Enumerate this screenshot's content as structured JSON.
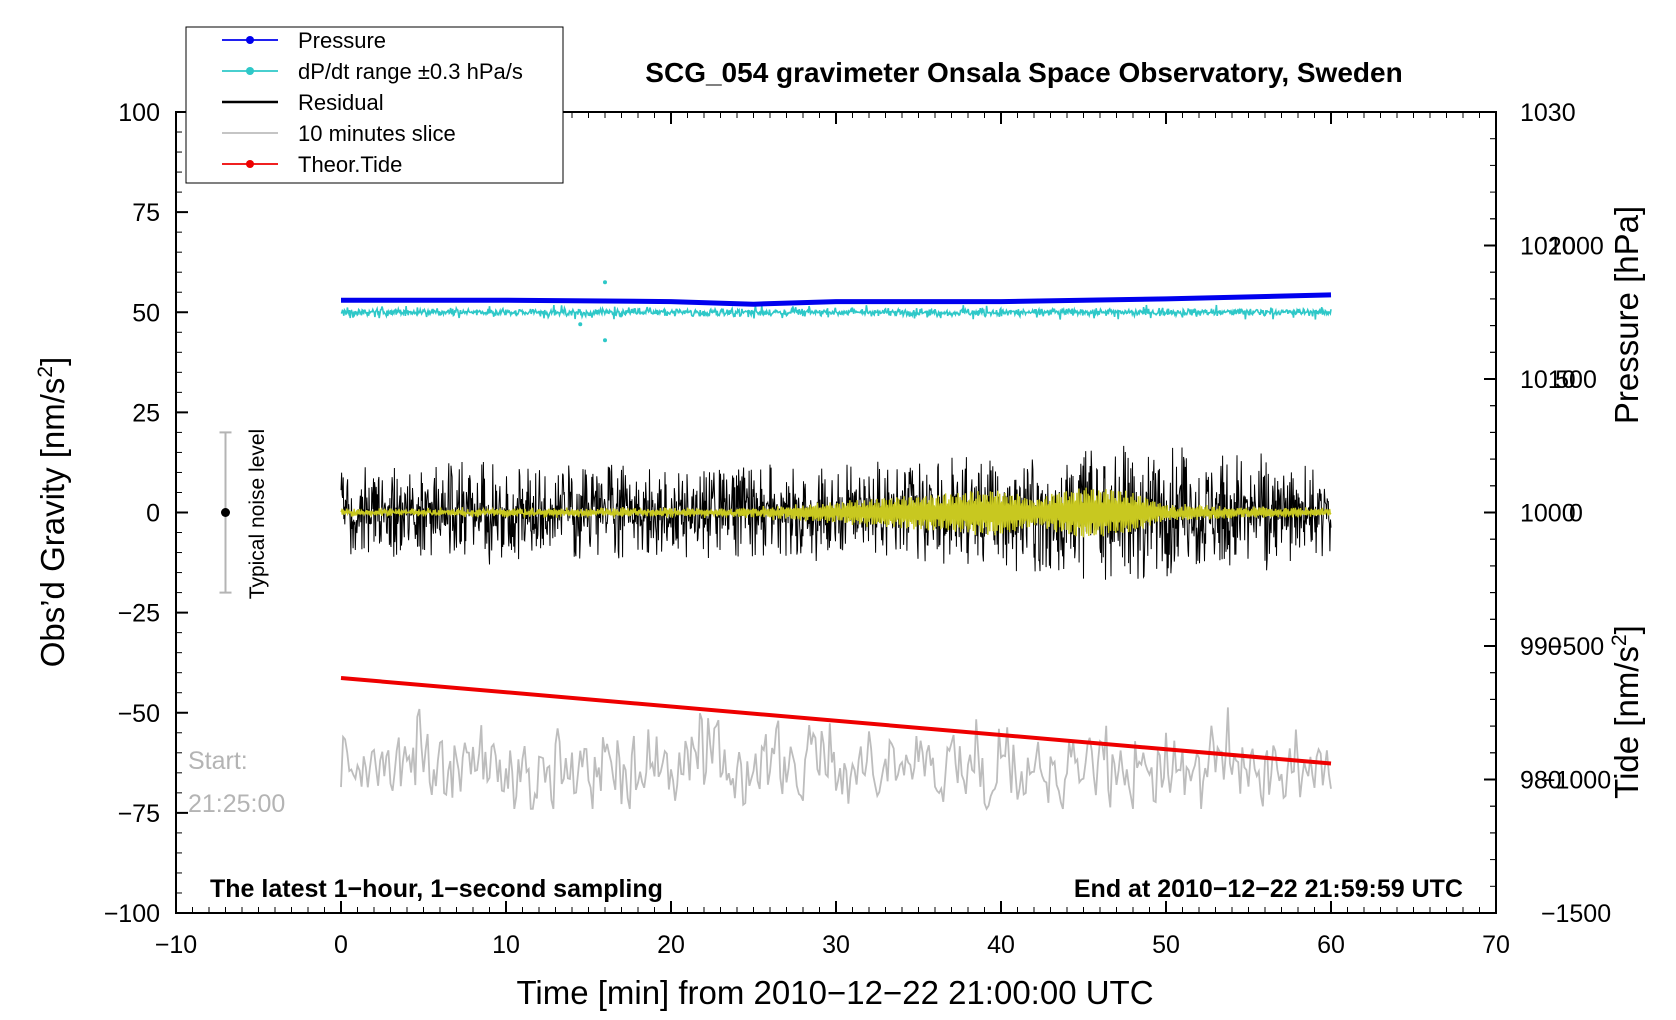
{
  "chart_data": {
    "type": "line",
    "title": "SCG_054 gravimeter Onsala Space Observatory, Sweden",
    "xlabel": "Time [min] from 2010−12−22 21:00:00 UTC",
    "ylabel_left": "Obs’d Gravity [nm/s",
    "ylabel_left_sup": "2",
    "ylabel_left_close": "]",
    "ylabel_right_pressure": "Pressure [hPa]",
    "ylabel_right_tide": "Tide [nm/s",
    "ylabel_right_tide_sup": "2",
    "ylabel_right_tide_close": "]",
    "xlim": [
      -10,
      70
    ],
    "ylim_left": [
      -100,
      100
    ],
    "ylim_pressure": [
      970,
      1030
    ],
    "ylim_tide": [
      -1500,
      1500
    ],
    "x_ticks": [
      -10,
      0,
      10,
      20,
      30,
      40,
      50,
      60,
      70
    ],
    "x_tick_labels": [
      "−10",
      "0",
      "10",
      "20",
      "30",
      "40",
      "50",
      "60",
      "70"
    ],
    "y_left_ticks": [
      100,
      75,
      50,
      25,
      0,
      -25,
      -50,
      -75,
      -100
    ],
    "y_left_tick_labels": [
      "100",
      "75",
      "50",
      "25",
      "0",
      "−25",
      "−50",
      "−75",
      "−100"
    ],
    "pressure_ticks": [
      1030,
      1020,
      1010,
      1000,
      990,
      980
    ],
    "pressure_tick_labels": [
      "1030",
      "1020",
      "1010",
      "1000",
      "990",
      "980"
    ],
    "tide_ticks": [
      1000,
      500,
      0,
      -500,
      -1000,
      -1500
    ],
    "tide_tick_labels": [
      "1000",
      "500",
      "0",
      "−500",
      "−1000",
      "−1500"
    ],
    "legend": {
      "placement": "top-left",
      "entries": [
        {
          "label": "Pressure",
          "color": "#0000ee",
          "marker": true
        },
        {
          "label": "dP/dt range ±0.3 hPa/s",
          "color": "#2ec8c8",
          "marker": true
        },
        {
          "label": "Residual",
          "color": "#000000",
          "marker": false
        },
        {
          "label": "10 minutes slice",
          "color": "#bdbdbd",
          "marker": false
        },
        {
          "label": "Theor.Tide",
          "color": "#ee0000",
          "marker": true
        }
      ]
    },
    "series": [
      {
        "name": "Pressure",
        "axis": "pressure",
        "color": "#0000ee",
        "x": [
          0,
          10,
          20,
          25,
          30,
          40,
          50,
          60
        ],
        "y": [
          1015.9,
          1015.9,
          1015.8,
          1015.6,
          1015.8,
          1015.8,
          1016.0,
          1016.3
        ]
      },
      {
        "name": "dP/dt range ±0.3 hPa/s",
        "axis": "left",
        "color": "#2ec8c8",
        "center": 50,
        "x_range": [
          0,
          60
        ],
        "spread": 1.3,
        "outliers": [
          {
            "x": 16,
            "y": 57.5
          },
          {
            "x": 16,
            "y": 43
          },
          {
            "x": 14.5,
            "y": 47
          }
        ]
      },
      {
        "name": "Residual",
        "axis": "left",
        "color": "#000000",
        "x_range": [
          0,
          60
        ],
        "envelope_x": [
          0,
          10,
          20,
          30,
          35,
          40,
          45,
          50,
          55,
          60
        ],
        "envelope_amp": [
          10,
          12,
          11,
          11,
          12,
          13,
          15,
          16,
          14,
          10
        ]
      },
      {
        "name": "Residual (smoothed)",
        "axis": "left",
        "color": "#c8c820",
        "x_range": [
          0,
          60
        ],
        "envelope_x": [
          0,
          25,
          30,
          35,
          40,
          42,
          45,
          48,
          50,
          60
        ],
        "envelope_amp": [
          0.8,
          1,
          3,
          5,
          7,
          4,
          8,
          6,
          2,
          1
        ]
      },
      {
        "name": "10 minutes slice",
        "axis": "left",
        "color": "#bdbdbd",
        "x_range": [
          0,
          60
        ],
        "center": -63,
        "amplitude": 12,
        "end_y": -69
      },
      {
        "name": "Theor.Tide",
        "axis": "tide",
        "color": "#ee0000",
        "x": [
          0,
          60
        ],
        "y": [
          -620,
          -940
        ]
      }
    ],
    "noise_level": {
      "label": "Typical noise level",
      "x": -7,
      "center": 0,
      "range": [
        -20,
        20
      ]
    },
    "start_label_line1": "Start:",
    "start_label_line2": "21:25:00",
    "bottom_left_note": "The latest 1−hour, 1−second sampling",
    "bottom_right_note": "End at 2010−12−22 21:59:59 UTC"
  }
}
